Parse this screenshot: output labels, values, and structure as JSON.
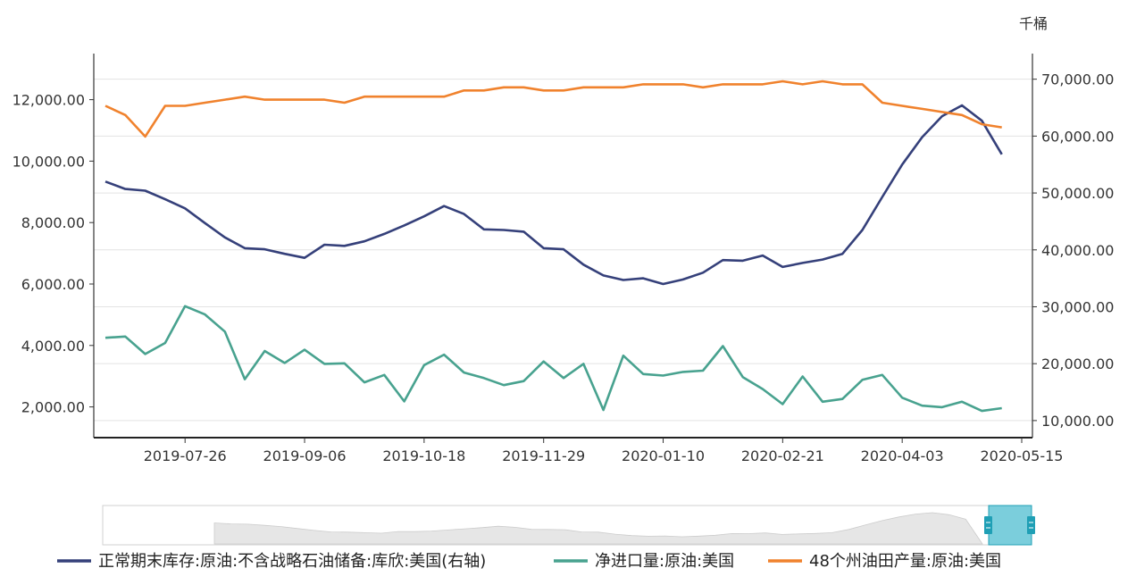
{
  "chart_data": {
    "type": "line",
    "right_axis_unit": "千桶",
    "x_dates": [
      "2019-06-28",
      "2019-07-05",
      "2019-07-12",
      "2019-07-19",
      "2019-07-26",
      "2019-08-02",
      "2019-08-09",
      "2019-08-16",
      "2019-08-23",
      "2019-08-30",
      "2019-09-06",
      "2019-09-13",
      "2019-09-20",
      "2019-09-27",
      "2019-10-04",
      "2019-10-11",
      "2019-10-18",
      "2019-10-25",
      "2019-11-01",
      "2019-11-08",
      "2019-11-15",
      "2019-11-22",
      "2019-11-29",
      "2019-12-06",
      "2019-12-13",
      "2019-12-20",
      "2019-12-27",
      "2020-01-03",
      "2020-01-10",
      "2020-01-17",
      "2020-01-24",
      "2020-01-31",
      "2020-02-07",
      "2020-02-14",
      "2020-02-21",
      "2020-02-28",
      "2020-03-06",
      "2020-03-13",
      "2020-03-20",
      "2020-03-27",
      "2020-04-03",
      "2020-04-10",
      "2020-04-17",
      "2020-04-24",
      "2020-05-01",
      "2020-05-08",
      "2020-05-15"
    ],
    "x_tick_labels": [
      "2019-07-26",
      "2019-09-06",
      "2019-10-18",
      "2019-11-29",
      "2020-01-10",
      "2020-02-21",
      "2020-04-03",
      "2020-05-15"
    ],
    "left_axis": {
      "min": 1000,
      "max": 13500,
      "ticks": [
        2000,
        4000,
        6000,
        8000,
        10000,
        12000
      ],
      "tick_labels": [
        "2,000.00",
        "4,000.00",
        "6,000.00",
        "8,000.00",
        "10,000.00",
        "12,000.00"
      ]
    },
    "right_axis": {
      "min": 7000,
      "max": 74500,
      "ticks": [
        10000,
        20000,
        30000,
        40000,
        50000,
        60000,
        70000
      ],
      "tick_labels": [
        "10,000.00",
        "20,000.00",
        "30,000.00",
        "40,000.00",
        "50,000.00",
        "60,000.00",
        "70,000.00"
      ]
    },
    "grid": true,
    "legend_position": "bottom",
    "series": [
      {
        "name": "正常期末库存:原油:不含战略石油储备:库欣:美国(右轴)",
        "axis": "right",
        "color": "#35407a",
        "values": [
          52000,
          50700,
          50400,
          48900,
          47300,
          44700,
          42200,
          40300,
          40100,
          39300,
          38600,
          40900,
          40700,
          41500,
          42800,
          44300,
          45900,
          47700,
          46300,
          43600,
          43500,
          43200,
          40300,
          40100,
          37400,
          35500,
          34700,
          35000,
          34000,
          34800,
          36000,
          38200,
          38100,
          39000,
          37000,
          37700,
          38300,
          39300,
          43500,
          49300,
          55000,
          59800,
          63500,
          65400,
          62700,
          56800,
          null
        ]
      },
      {
        "name": "净进口量:原油:美国",
        "axis": "left",
        "color": "#48a28f",
        "values": [
          4250,
          4290,
          3720,
          4080,
          5280,
          5010,
          4450,
          2900,
          3820,
          3430,
          3860,
          3400,
          3420,
          2800,
          3040,
          2180,
          3360,
          3700,
          3120,
          2940,
          2710,
          2840,
          3480,
          2940,
          3400,
          1900,
          3670,
          3070,
          3020,
          3140,
          3180,
          3980,
          2970,
          2580,
          2090,
          2990,
          2170,
          2260,
          2880,
          3040,
          2300,
          2040,
          1990,
          2170,
          1870,
          1960,
          null
        ]
      },
      {
        "name": "48个州油田产量:原油:美国",
        "axis": "left",
        "color": "#f0822d",
        "values": [
          11800,
          11500,
          10800,
          11800,
          11800,
          11900,
          12000,
          12100,
          12000,
          12000,
          12000,
          12000,
          11900,
          12100,
          12100,
          12100,
          12100,
          12100,
          12300,
          12300,
          12400,
          12400,
          12300,
          12300,
          12400,
          12400,
          12400,
          12500,
          12500,
          12500,
          12400,
          12500,
          12500,
          12500,
          12600,
          12500,
          12600,
          12500,
          12500,
          11900,
          11800,
          11700,
          11600,
          11500,
          11200,
          11100,
          null
        ]
      }
    ]
  }
}
